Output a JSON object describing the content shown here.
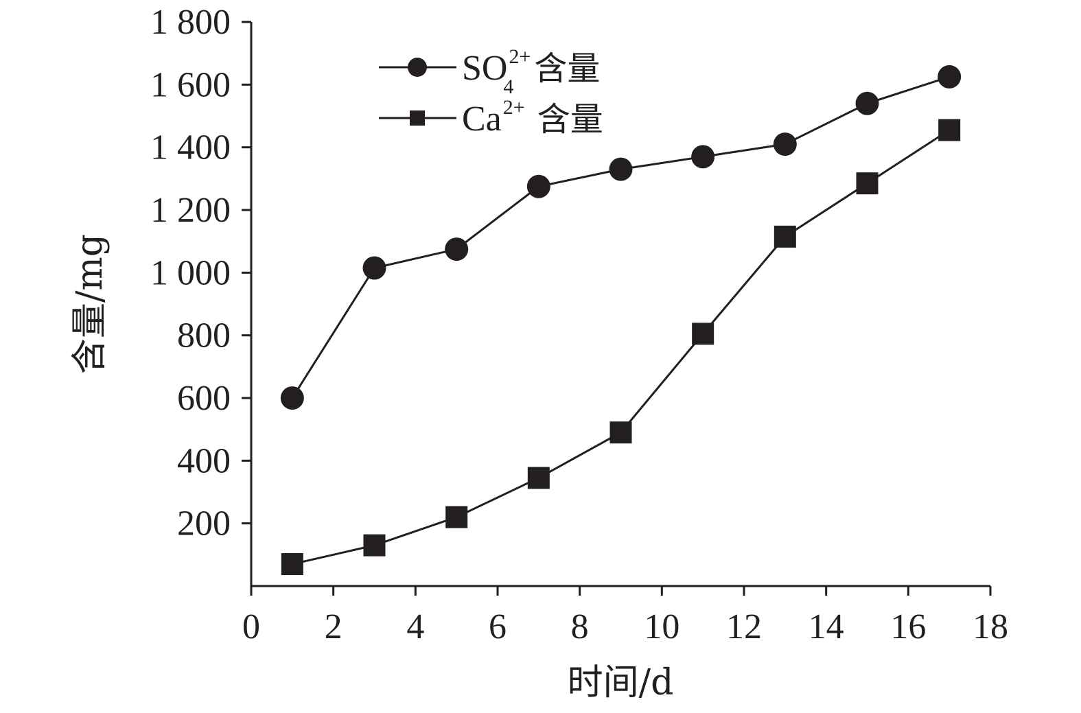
{
  "chart_data": {
    "type": "line",
    "title": "",
    "xlabel": "时间/d",
    "ylabel": "含量/mg",
    "xlim": [
      0,
      18
    ],
    "ylim": [
      0,
      1800
    ],
    "xticks": [
      0,
      2,
      4,
      6,
      8,
      10,
      12,
      14,
      16,
      18
    ],
    "yticks": [
      200,
      400,
      600,
      800,
      1000,
      1200,
      1400,
      1600,
      1800
    ],
    "ytick_labels": [
      "200",
      "400",
      "600",
      "800",
      "1 000",
      "1 200",
      "1 400",
      "1 600",
      "1 800"
    ],
    "xtick_labels": [
      "0",
      "2",
      "4",
      "6",
      "8",
      "10",
      "12",
      "14",
      "16",
      "18"
    ],
    "grid": false,
    "legend_position": "top-left",
    "x": [
      1,
      3,
      5,
      7,
      9,
      11,
      13,
      15,
      17
    ],
    "series": [
      {
        "name": "SO42+ 含量",
        "name_base": "SO",
        "name_sub": "4",
        "name_sup": "2+",
        "name_suffix": "含量",
        "marker": "circle",
        "values": [
          600,
          1015,
          1075,
          1275,
          1330,
          1370,
          1410,
          1540,
          1625
        ]
      },
      {
        "name": "Ca2+ 含量",
        "name_base": "Ca",
        "name_sup": "2+",
        "name_suffix": "含量",
        "marker": "square",
        "values": [
          70,
          130,
          220,
          345,
          490,
          805,
          1115,
          1285,
          1455
        ]
      }
    ],
    "colors": {
      "line": "#231f20",
      "marker": "#231f20",
      "axis": "#231f20"
    }
  }
}
